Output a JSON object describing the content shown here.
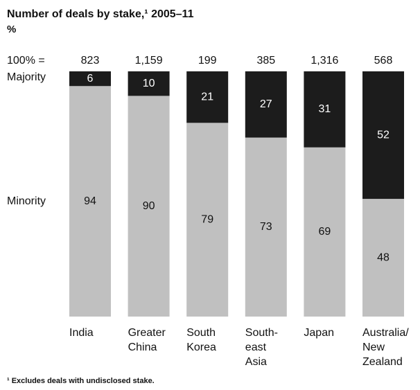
{
  "chart_data": {
    "type": "stacked-bar",
    "title": "Number of deals by stake,¹ 2005–11",
    "subtitle": "%",
    "total_prefix": "100% =",
    "totals": [
      {
        "value": 823,
        "label": "823"
      },
      {
        "value": 1159,
        "label": "1,159"
      },
      {
        "value": 199,
        "label": "199"
      },
      {
        "value": 385,
        "label": "385"
      },
      {
        "value": 1316,
        "label": "1,316"
      },
      {
        "value": 568,
        "label": "568"
      }
    ],
    "categories": [
      "India",
      "Greater\nChina",
      "South\nKorea",
      "South-\neast\nAsia",
      "Japan",
      "Australia/\nNew\nZealand"
    ],
    "ylim": [
      0,
      100
    ],
    "series": [
      {
        "name": "Minority",
        "color": "#c0c0c0",
        "label_color": "#111111",
        "values": [
          94,
          90,
          79,
          73,
          69,
          48
        ]
      },
      {
        "name": "Majority",
        "color": "#1c1c1c",
        "label_color": "#ffffff",
        "values": [
          6,
          10,
          21,
          27,
          31,
          52
        ]
      }
    ],
    "footnote": "¹ Excludes deals with undisclosed stake."
  }
}
